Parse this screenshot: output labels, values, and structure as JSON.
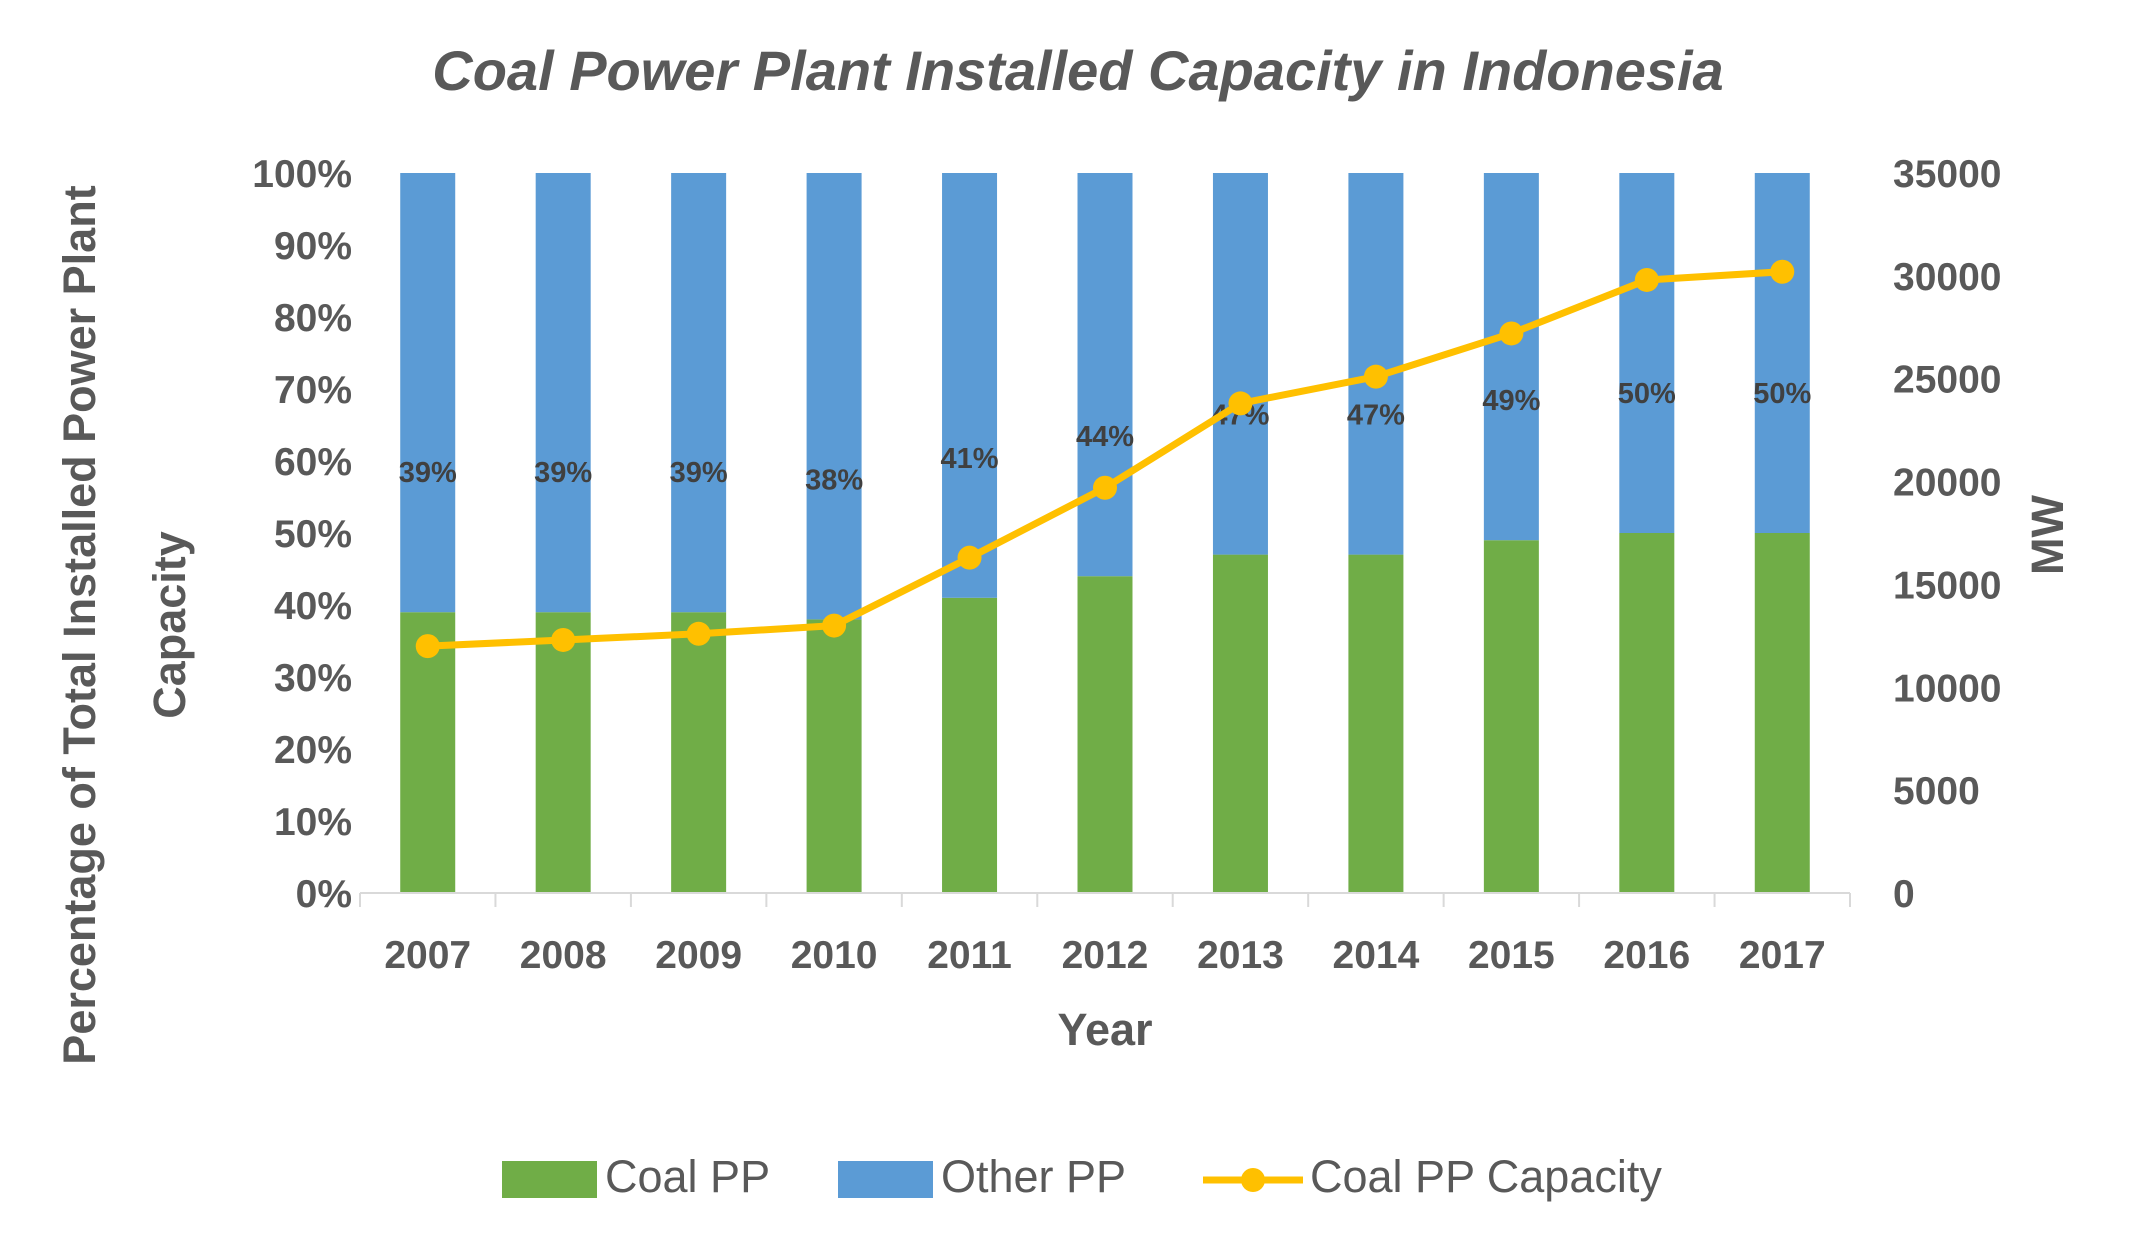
{
  "chart_data": {
    "type": "bar",
    "stacked": true,
    "percent_stacked": true,
    "title": "Coal Power Plant Installed Capacity in Indonesia",
    "xlabel": "Year",
    "ylabel_lines": [
      "Percentage of Total Installed Power Plant",
      "Capacity"
    ],
    "y2label": "MW",
    "categories": [
      "2007",
      "2008",
      "2009",
      "2010",
      "2011",
      "2012",
      "2013",
      "2014",
      "2015",
      "2016",
      "2017"
    ],
    "ylim": [
      0,
      100
    ],
    "yticks": [
      "0%",
      "10%",
      "20%",
      "30%",
      "40%",
      "50%",
      "60%",
      "70%",
      "80%",
      "90%",
      "100%"
    ],
    "y2lim": [
      0,
      35000
    ],
    "y2ticks": [
      "0",
      "5000",
      "10000",
      "15000",
      "20000",
      "25000",
      "30000",
      "35000"
    ],
    "series": [
      {
        "name": "Coal PP",
        "kind": "bar",
        "axis": "left",
        "color": "#70AD47",
        "values": [
          39,
          39,
          39,
          38,
          41,
          44,
          47,
          47,
          49,
          50,
          50
        ],
        "labels": [
          "39%",
          "39%",
          "39%",
          "38%",
          "41%",
          "44%",
          "47%",
          "47%",
          "49%",
          "50%",
          "50%"
        ]
      },
      {
        "name": "Other PP",
        "kind": "bar",
        "axis": "left",
        "color": "#5B9BD5",
        "values": [
          61,
          61,
          61,
          62,
          59,
          56,
          53,
          53,
          51,
          50,
          50
        ]
      },
      {
        "name": "Coal PP Capacity",
        "kind": "line",
        "axis": "right",
        "color": "#FFC000",
        "values": [
          12000,
          12300,
          12600,
          13000,
          16300,
          19700,
          23800,
          25100,
          27200,
          29800,
          30200
        ]
      }
    ],
    "legend": "bottom",
    "grid": false
  }
}
